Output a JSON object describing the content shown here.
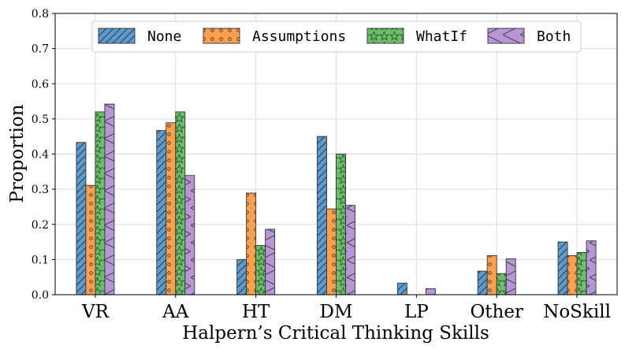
{
  "chart_data": {
    "type": "bar",
    "categories": [
      "VR",
      "AA",
      "HT",
      "DM",
      "LP",
      "Other",
      "NoSkill"
    ],
    "series": [
      {
        "name": "None",
        "color": "#5a9bd0",
        "hatch": "diagonal",
        "values": [
          0.433,
          0.467,
          0.1,
          0.45,
          0.033,
          0.067,
          0.15
        ]
      },
      {
        "name": "Assumptions",
        "color": "#ffa04d",
        "hatch": "circles",
        "values": [
          0.311,
          0.489,
          0.289,
          0.244,
          0.0,
          0.111,
          0.111
        ]
      },
      {
        "name": "WhatIf",
        "color": "#6bbf6b",
        "hatch": "stars",
        "values": [
          0.52,
          0.52,
          0.14,
          0.4,
          0.0,
          0.06,
          0.12
        ]
      },
      {
        "name": "Both",
        "color": "#b795d6",
        "hatch": "cross",
        "values": [
          0.542,
          0.339,
          0.186,
          0.254,
          0.017,
          0.102,
          0.153
        ]
      }
    ],
    "title": "",
    "xlabel": "Halpern’s Critical Thinking Skills",
    "ylabel": "Proportion",
    "ylim": [
      0,
      0.8
    ],
    "yticks": [
      "0.0",
      "0.1",
      "0.2",
      "0.3",
      "0.4",
      "0.5",
      "0.6",
      "0.7",
      "0.8"
    ],
    "grid": true,
    "legend_position": "top-center"
  }
}
